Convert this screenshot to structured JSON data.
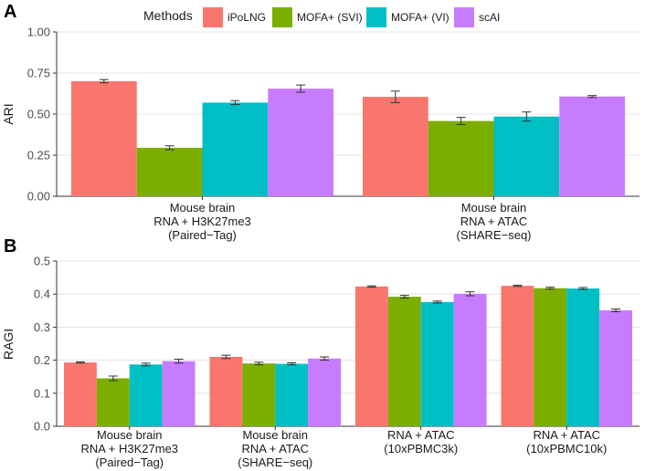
{
  "legend": {
    "title": "Methods",
    "items": [
      {
        "name": "iPoLNG",
        "color": "#F8766D"
      },
      {
        "name": "MOFA+ (SVI)",
        "color": "#7CAE00"
      },
      {
        "name": "MOFA+ (VI)",
        "color": "#00BFC4"
      },
      {
        "name": "scAI",
        "color": "#C77CFF"
      }
    ]
  },
  "chart_data": [
    {
      "type": "bar",
      "panel": "A",
      "ylabel": "ARI",
      "xlabel": "",
      "ylim": [
        0,
        1.0
      ],
      "yticks": [
        "0.00",
        "0.25",
        "0.50",
        "0.75",
        "1.00"
      ],
      "ytick_values": [
        0,
        0.25,
        0.5,
        0.75,
        1.0
      ],
      "categories": [
        [
          "Mouse brain",
          "RNA + H3K27me3",
          "(Paired−Tag)"
        ],
        [
          "Mouse brain",
          "RNA + ATAC",
          "(SHARE−seq)"
        ]
      ],
      "series": [
        {
          "name": "iPoLNG",
          "values": [
            0.7,
            0.605
          ],
          "errors": [
            0.01,
            0.035
          ]
        },
        {
          "name": "MOFA+ (SVI)",
          "values": [
            0.295,
            0.458
          ],
          "errors": [
            0.012,
            0.022
          ]
        },
        {
          "name": "MOFA+ (VI)",
          "values": [
            0.57,
            0.485
          ],
          "errors": [
            0.012,
            0.028
          ]
        },
        {
          "name": "scAI",
          "values": [
            0.655,
            0.607
          ],
          "errors": [
            0.022,
            0.006
          ]
        }
      ]
    },
    {
      "type": "bar",
      "panel": "B",
      "ylabel": "RAGI",
      "xlabel": "",
      "ylim": [
        0,
        0.5
      ],
      "yticks": [
        "0.0",
        "0.1",
        "0.2",
        "0.3",
        "0.4",
        "0.5"
      ],
      "ytick_values": [
        0,
        0.1,
        0.2,
        0.3,
        0.4,
        0.5
      ],
      "categories": [
        [
          "Mouse brain",
          "RNA + H3K27me3",
          "(Paired−Tag)"
        ],
        [
          "Mouse brain",
          "RNA + ATAC",
          "(SHARE−seq)"
        ],
        [
          "RNA + ATAC",
          "(10xPBMC3k)"
        ],
        [
          "RNA + ATAC",
          "(10xPBMC10k)"
        ]
      ],
      "series": [
        {
          "name": "iPoLNG",
          "values": [
            0.193,
            0.21,
            0.423,
            0.425
          ],
          "errors": [
            0.002,
            0.005,
            0.002,
            0.002
          ]
        },
        {
          "name": "MOFA+ (SVI)",
          "values": [
            0.145,
            0.19,
            0.392,
            0.418
          ],
          "errors": [
            0.007,
            0.004,
            0.004,
            0.003
          ]
        },
        {
          "name": "MOFA+ (VI)",
          "values": [
            0.187,
            0.189,
            0.376,
            0.417
          ],
          "errors": [
            0.004,
            0.003,
            0.003,
            0.003
          ]
        },
        {
          "name": "scAI",
          "values": [
            0.197,
            0.205,
            0.401,
            0.351
          ],
          "errors": [
            0.006,
            0.005,
            0.006,
            0.004
          ]
        }
      ]
    }
  ]
}
